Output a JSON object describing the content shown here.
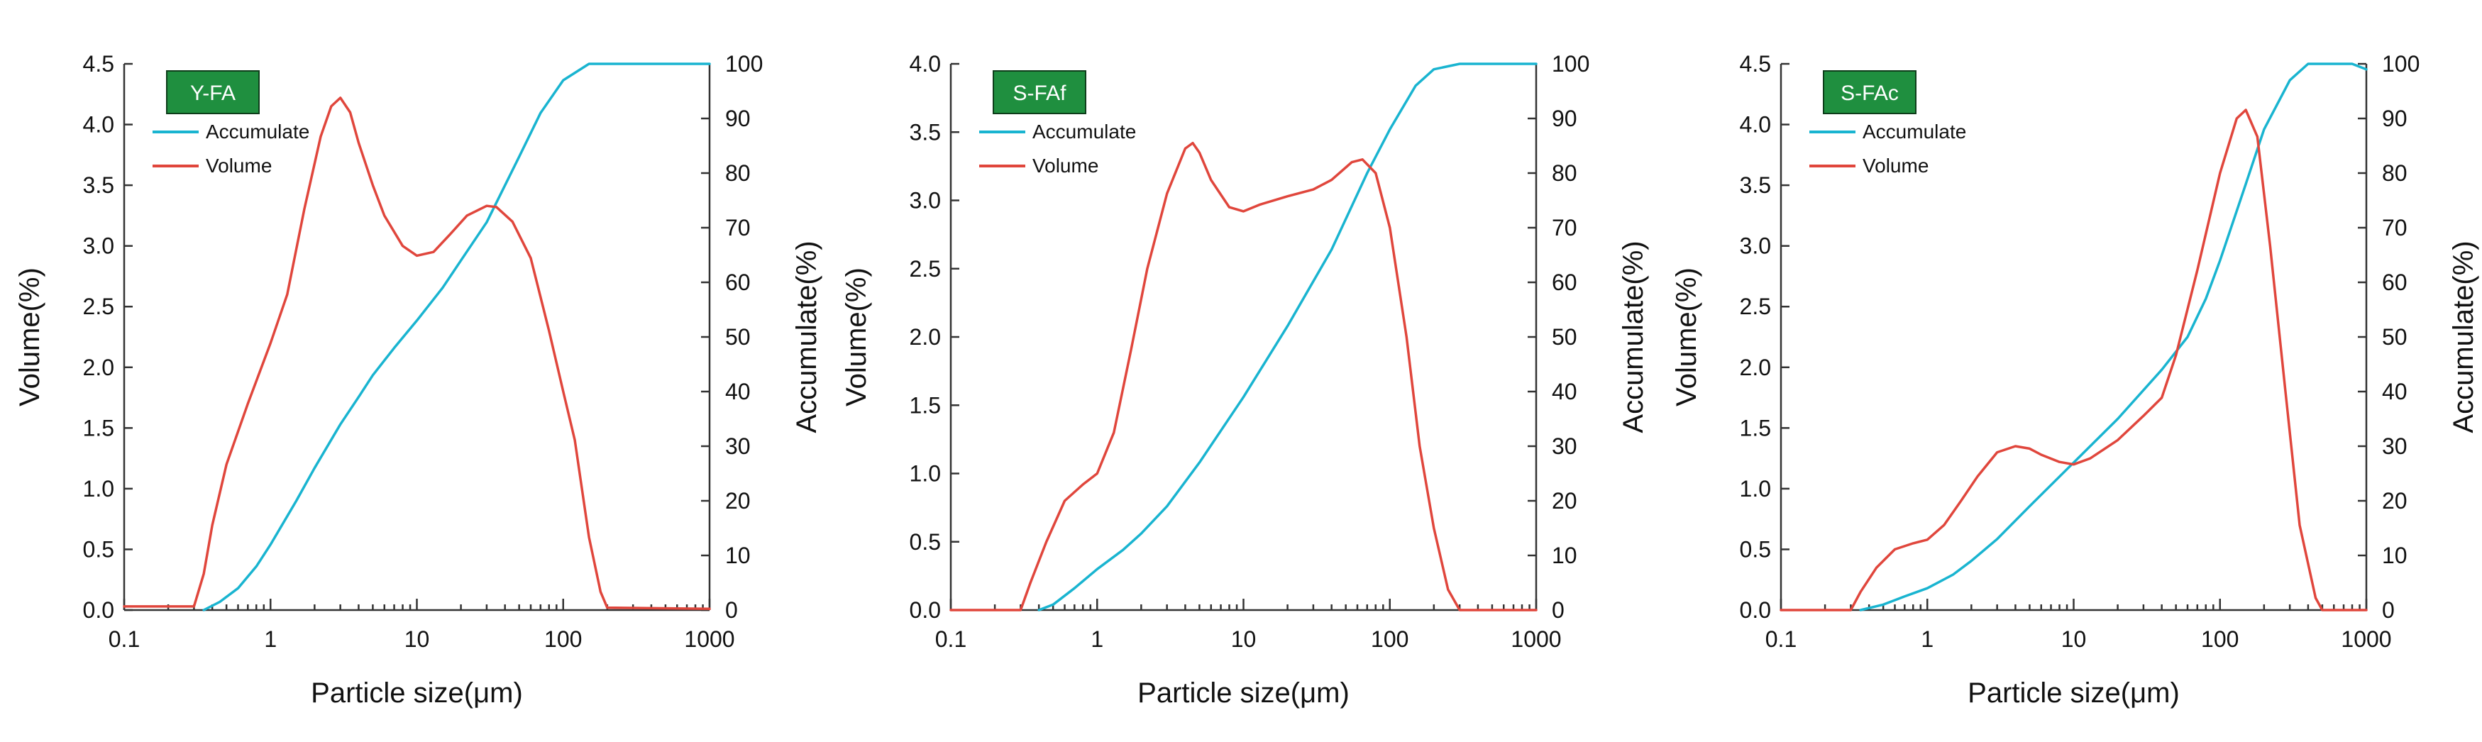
{
  "chart_data": [
    {
      "type": "line",
      "sample_label": "Y-FA",
      "xlabel": "Particle size(μm)",
      "ylabel": "Volume(%)",
      "y2label": "Accumulate(%)",
      "xscale": "log",
      "xlim": [
        0.1,
        1000
      ],
      "ylim": [
        0,
        4.5
      ],
      "y2lim": [
        0,
        100
      ],
      "xticks": [
        0.1,
        1,
        10,
        100,
        1000
      ],
      "xtick_labels": [
        "0.1",
        "1",
        "10",
        "100",
        "1000"
      ],
      "yticks": [
        0.0,
        0.5,
        1.0,
        1.5,
        2.0,
        2.5,
        3.0,
        3.5,
        4.0,
        4.5
      ],
      "ytick_labels": [
        "0.0",
        "0.5",
        "1.0",
        "1.5",
        "2.0",
        "2.5",
        "3.0",
        "3.5",
        "4.0",
        "4.5"
      ],
      "y2ticks": [
        0,
        10,
        20,
        30,
        40,
        50,
        60,
        70,
        80,
        90,
        100
      ],
      "y2tick_labels": [
        "0",
        "10",
        "20",
        "30",
        "40",
        "50",
        "60",
        "70",
        "80",
        "90",
        "100"
      ],
      "legend": [
        {
          "name": "Accumulate",
          "color": "#19b4d0"
        },
        {
          "name": "Volume",
          "color": "#e0463c"
        }
      ],
      "series": [
        {
          "name": "Accumulate",
          "axis": "right",
          "color": "#19b4d0",
          "points": [
            [
              0.35,
              0
            ],
            [
              0.45,
              1.5
            ],
            [
              0.6,
              4
            ],
            [
              0.8,
              8
            ],
            [
              1,
              12
            ],
            [
              1.5,
              20
            ],
            [
              2,
              26
            ],
            [
              3,
              34
            ],
            [
              4,
              39
            ],
            [
              5,
              43
            ],
            [
              7,
              48
            ],
            [
              10,
              53
            ],
            [
              15,
              59
            ],
            [
              20,
              64
            ],
            [
              30,
              71
            ],
            [
              50,
              83
            ],
            [
              70,
              91
            ],
            [
              100,
              97
            ],
            [
              150,
              100
            ],
            [
              300,
              100
            ],
            [
              1000,
              100
            ]
          ]
        },
        {
          "name": "Volume",
          "axis": "left",
          "color": "#e0463c",
          "points": [
            [
              0.1,
              0.03
            ],
            [
              0.3,
              0.03
            ],
            [
              0.35,
              0.3
            ],
            [
              0.4,
              0.7
            ],
            [
              0.5,
              1.2
            ],
            [
              0.7,
              1.7
            ],
            [
              1,
              2.2
            ],
            [
              1.3,
              2.6
            ],
            [
              1.7,
              3.3
            ],
            [
              2.2,
              3.9
            ],
            [
              2.6,
              4.15
            ],
            [
              3,
              4.22
            ],
            [
              3.5,
              4.1
            ],
            [
              4,
              3.85
            ],
            [
              5,
              3.5
            ],
            [
              6,
              3.25
            ],
            [
              8,
              3.0
            ],
            [
              10,
              2.92
            ],
            [
              13,
              2.95
            ],
            [
              17,
              3.1
            ],
            [
              22,
              3.25
            ],
            [
              30,
              3.33
            ],
            [
              35,
              3.32
            ],
            [
              45,
              3.2
            ],
            [
              60,
              2.9
            ],
            [
              80,
              2.3
            ],
            [
              100,
              1.8
            ],
            [
              120,
              1.4
            ],
            [
              150,
              0.6
            ],
            [
              180,
              0.15
            ],
            [
              200,
              0.02
            ],
            [
              1000,
              0.01
            ]
          ]
        }
      ]
    },
    {
      "type": "line",
      "sample_label": "S-FAf",
      "xlabel": "Particle size(μm)",
      "ylabel": "Volume(%)",
      "y2label": "Accumulate(%)",
      "xscale": "log",
      "xlim": [
        0.1,
        1000
      ],
      "ylim": [
        0,
        4.0
      ],
      "y2lim": [
        0,
        100
      ],
      "xticks": [
        0.1,
        1,
        10,
        100,
        1000
      ],
      "xtick_labels": [
        "0.1",
        "1",
        "10",
        "100",
        "1000"
      ],
      "yticks": [
        0.0,
        0.5,
        1.0,
        1.5,
        2.0,
        2.5,
        3.0,
        3.5,
        4.0
      ],
      "ytick_labels": [
        "0.0",
        "0.5",
        "1.0",
        "1.5",
        "2.0",
        "2.5",
        "3.0",
        "3.5",
        "4.0"
      ],
      "y2ticks": [
        0,
        10,
        20,
        30,
        40,
        50,
        60,
        70,
        80,
        90,
        100
      ],
      "y2tick_labels": [
        "0",
        "10",
        "20",
        "30",
        "40",
        "50",
        "60",
        "70",
        "80",
        "90",
        "100"
      ],
      "legend": [
        {
          "name": "Accumulate",
          "color": "#19b4d0"
        },
        {
          "name": "Volume",
          "color": "#e0463c"
        }
      ],
      "series": [
        {
          "name": "Accumulate",
          "axis": "right",
          "color": "#19b4d0",
          "points": [
            [
              0.4,
              0
            ],
            [
              0.5,
              1
            ],
            [
              0.7,
              4
            ],
            [
              1,
              7.5
            ],
            [
              1.5,
              11
            ],
            [
              2,
              14
            ],
            [
              3,
              19
            ],
            [
              5,
              27
            ],
            [
              10,
              39
            ],
            [
              20,
              52
            ],
            [
              40,
              66
            ],
            [
              70,
              80
            ],
            [
              100,
              88
            ],
            [
              150,
              96
            ],
            [
              200,
              99
            ],
            [
              300,
              100
            ],
            [
              1000,
              100
            ]
          ]
        },
        {
          "name": "Volume",
          "axis": "left",
          "color": "#e0463c",
          "points": [
            [
              0.1,
              0
            ],
            [
              0.3,
              0
            ],
            [
              0.35,
              0.2
            ],
            [
              0.45,
              0.5
            ],
            [
              0.6,
              0.8
            ],
            [
              0.8,
              0.92
            ],
            [
              1,
              1.0
            ],
            [
              1.3,
              1.3
            ],
            [
              1.7,
              1.9
            ],
            [
              2.2,
              2.5
            ],
            [
              3,
              3.05
            ],
            [
              4,
              3.38
            ],
            [
              4.5,
              3.42
            ],
            [
              5,
              3.35
            ],
            [
              6,
              3.15
            ],
            [
              8,
              2.95
            ],
            [
              10,
              2.92
            ],
            [
              13,
              2.97
            ],
            [
              20,
              3.03
            ],
            [
              30,
              3.08
            ],
            [
              40,
              3.15
            ],
            [
              55,
              3.28
            ],
            [
              65,
              3.3
            ],
            [
              80,
              3.2
            ],
            [
              100,
              2.8
            ],
            [
              130,
              2.0
            ],
            [
              160,
              1.2
            ],
            [
              200,
              0.6
            ],
            [
              250,
              0.15
            ],
            [
              300,
              0
            ],
            [
              1000,
              0
            ]
          ]
        }
      ]
    },
    {
      "type": "line",
      "sample_label": "S-FAc",
      "xlabel": "Particle size(μm)",
      "ylabel": "Volume(%)",
      "y2label": "Accumulate(%)",
      "xscale": "log",
      "xlim": [
        0.1,
        1000
      ],
      "ylim": [
        0,
        4.5
      ],
      "y2lim": [
        0,
        100
      ],
      "xticks": [
        0.1,
        1,
        10,
        100,
        1000
      ],
      "xtick_labels": [
        "0.1",
        "1",
        "10",
        "100",
        "1000"
      ],
      "yticks": [
        0.0,
        0.5,
        1.0,
        1.5,
        2.0,
        2.5,
        3.0,
        3.5,
        4.0,
        4.5
      ],
      "ytick_labels": [
        "0.0",
        "0.5",
        "1.0",
        "1.5",
        "2.0",
        "2.5",
        "3.0",
        "3.5",
        "4.0",
        "4.5"
      ],
      "y2ticks": [
        0,
        10,
        20,
        30,
        40,
        50,
        60,
        70,
        80,
        90,
        100
      ],
      "y2tick_labels": [
        "0",
        "10",
        "20",
        "30",
        "40",
        "50",
        "60",
        "70",
        "80",
        "90",
        "100"
      ],
      "legend": [
        {
          "name": "Accumulate",
          "color": "#19b4d0"
        },
        {
          "name": "Volume",
          "color": "#e0463c"
        }
      ],
      "series": [
        {
          "name": "Accumulate",
          "axis": "right",
          "color": "#19b4d0",
          "points": [
            [
              0.35,
              0
            ],
            [
              0.5,
              1
            ],
            [
              0.7,
              2.5
            ],
            [
              1,
              4
            ],
            [
              1.5,
              6.5
            ],
            [
              2,
              9
            ],
            [
              3,
              13
            ],
            [
              5,
              19
            ],
            [
              10,
              27
            ],
            [
              20,
              35
            ],
            [
              40,
              44
            ],
            [
              60,
              50
            ],
            [
              80,
              57
            ],
            [
              100,
              64
            ],
            [
              150,
              78
            ],
            [
              200,
              88
            ],
            [
              300,
              97
            ],
            [
              400,
              100
            ],
            [
              800,
              100
            ],
            [
              1000,
              99
            ]
          ]
        },
        {
          "name": "Volume",
          "axis": "left",
          "color": "#e0463c",
          "points": [
            [
              0.1,
              0
            ],
            [
              0.3,
              0
            ],
            [
              0.35,
              0.15
            ],
            [
              0.45,
              0.35
            ],
            [
              0.6,
              0.5
            ],
            [
              0.8,
              0.55
            ],
            [
              1,
              0.58
            ],
            [
              1.3,
              0.7
            ],
            [
              1.7,
              0.9
            ],
            [
              2.2,
              1.1
            ],
            [
              3,
              1.3
            ],
            [
              4,
              1.35
            ],
            [
              5,
              1.33
            ],
            [
              6,
              1.28
            ],
            [
              8,
              1.22
            ],
            [
              10,
              1.2
            ],
            [
              13,
              1.25
            ],
            [
              20,
              1.4
            ],
            [
              30,
              1.6
            ],
            [
              40,
              1.75
            ],
            [
              50,
              2.1
            ],
            [
              70,
              2.8
            ],
            [
              100,
              3.6
            ],
            [
              130,
              4.05
            ],
            [
              150,
              4.12
            ],
            [
              180,
              3.9
            ],
            [
              220,
              3.0
            ],
            [
              280,
              1.8
            ],
            [
              350,
              0.7
            ],
            [
              450,
              0.1
            ],
            [
              500,
              0
            ],
            [
              1000,
              0
            ]
          ]
        }
      ]
    }
  ]
}
